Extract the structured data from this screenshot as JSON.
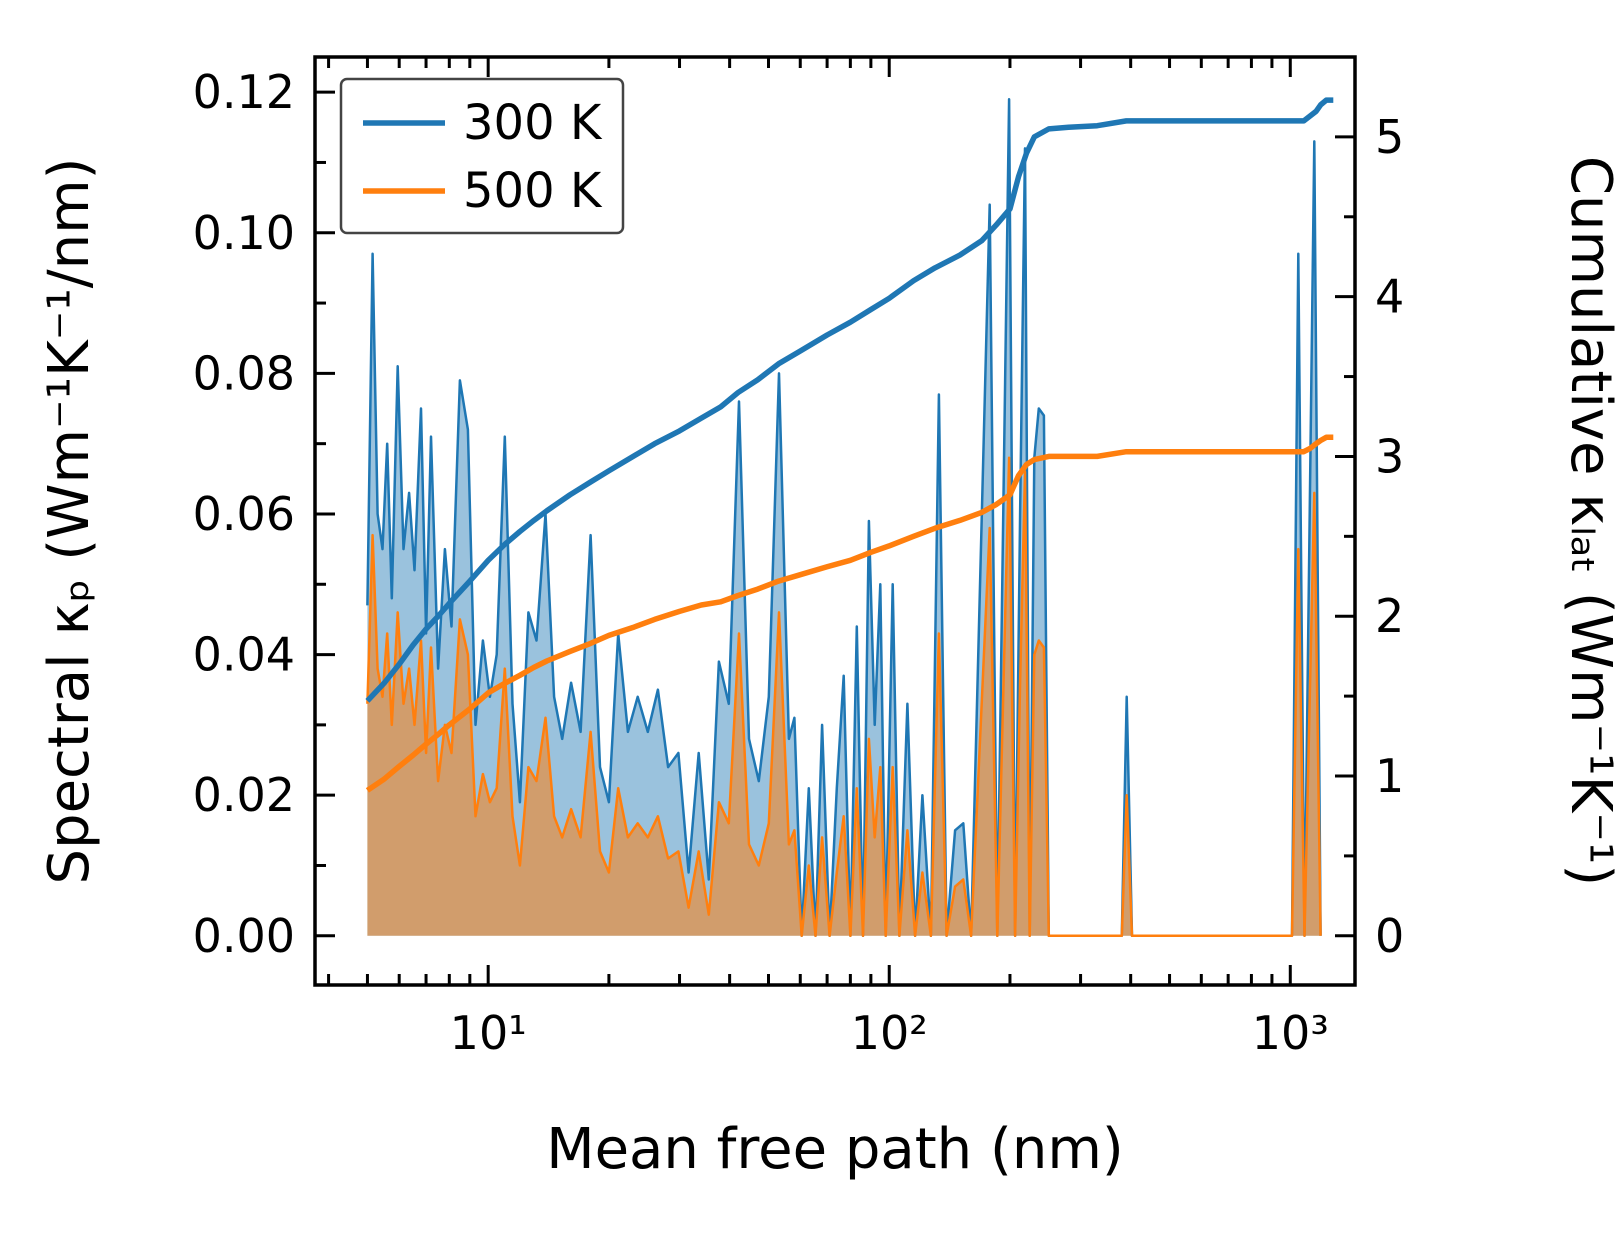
{
  "figure": {
    "background": "#ffffff",
    "frame_color": "#000000"
  },
  "legend": {
    "position": "upper-left",
    "items": [
      {
        "label": "300 K",
        "color": "#1f77b4"
      },
      {
        "label": "500 K",
        "color": "#ff7f0e"
      }
    ]
  },
  "axes": {
    "x_label": "Mean free path (nm)",
    "y_left_label": "Spectral κₚ (Wm⁻¹K⁻¹/nm)",
    "y_right_label": "Cumulative κₗₐₜ (Wm⁻¹K⁻¹)",
    "x_scale": "log",
    "xlim": [
      3.7,
      1450
    ],
    "ylim_left": [
      -0.007,
      0.125
    ],
    "ylim_right": [
      -0.308,
      5.5
    ],
    "x_tick_values": [
      10,
      100,
      1000
    ],
    "x_tick_labels": [
      "10¹",
      "10²",
      "10³"
    ],
    "y_left_tick_values": [
      0,
      0.02,
      0.04,
      0.06,
      0.08,
      0.1,
      0.12
    ],
    "y_left_tick_labels": [
      "0.00",
      "0.02",
      "0.04",
      "0.06",
      "0.08",
      "0.10",
      "0.12"
    ],
    "y_left_minor_values": [
      0.01,
      0.03,
      0.05,
      0.07,
      0.09,
      0.11
    ],
    "y_right_tick_values": [
      0,
      1,
      2,
      3,
      4,
      5
    ],
    "y_right_tick_labels": [
      "0",
      "1",
      "2",
      "3",
      "4",
      "5"
    ],
    "y_right_minor_values": [
      0.5,
      1.5,
      2.5,
      3.5,
      4.5
    ]
  },
  "chart_data": {
    "type": "area",
    "title": "",
    "x_scale": "log",
    "xlabel": "Mean free path (nm)",
    "ylabel_left": "Spectral κₚ (Wm⁻¹K⁻¹/nm)",
    "ylabel_right": "Cumulative κₗₐₜ (Wm⁻¹K⁻¹)",
    "xlim": [
      3.7,
      1450
    ],
    "ylim_left": [
      -0.007,
      0.125
    ],
    "ylim_right": [
      -0.308,
      5.5
    ],
    "legend_position": "upper left",
    "grid": false,
    "colors": {
      "k300": "#1f77b4",
      "k500": "#ff7f0e"
    },
    "spectral": {
      "description": "Spectral thermal conductivity per mean free path (left axis, filled spiky curves)",
      "x": [
        5.0,
        5.15,
        5.3,
        5.45,
        5.6,
        5.75,
        5.95,
        6.15,
        6.35,
        6.55,
        6.8,
        7.0,
        7.2,
        7.5,
        7.8,
        8.1,
        8.5,
        8.9,
        9.3,
        9.7,
        10.1,
        10.5,
        11.0,
        11.5,
        12.0,
        12.6,
        13.2,
        13.9,
        14.6,
        15.3,
        16.1,
        17.0,
        18.0,
        19.0,
        20.0,
        21.1,
        22.3,
        23.6,
        25.0,
        26.5,
        28.1,
        29.8,
        31.6,
        33.5,
        35.5,
        37.6,
        39.8,
        42.2,
        44.7,
        47.3,
        50.1,
        53.1,
        56.2,
        58.0,
        60.5,
        63.0,
        65.5,
        68.0,
        71.0,
        74.0,
        77.0,
        80.0,
        83.0,
        86.0,
        89.0,
        92.0,
        95.0,
        98.0,
        102,
        106,
        111,
        116,
        121,
        127,
        133,
        139,
        146,
        153,
        160,
        178,
        186,
        199,
        206,
        212,
        218,
        224,
        230,
        236,
        243,
        250,
        380,
        391,
        403,
        1010,
        1047,
        1085,
        1148,
        1190
      ],
      "k300": [
        0.047,
        0.097,
        0.06,
        0.055,
        0.07,
        0.048,
        0.081,
        0.055,
        0.063,
        0.052,
        0.075,
        0.043,
        0.071,
        0.038,
        0.055,
        0.044,
        0.079,
        0.072,
        0.03,
        0.042,
        0.034,
        0.04,
        0.071,
        0.033,
        0.019,
        0.046,
        0.042,
        0.06,
        0.034,
        0.028,
        0.036,
        0.029,
        0.057,
        0.024,
        0.019,
        0.043,
        0.029,
        0.034,
        0.029,
        0.035,
        0.024,
        0.026,
        0.009,
        0.026,
        0.008,
        0.039,
        0.033,
        0.076,
        0.028,
        0.022,
        0.034,
        0.08,
        0.028,
        0.031,
        0.0,
        0.021,
        0.0,
        0.03,
        0.0,
        0.021,
        0.037,
        0.0,
        0.044,
        0.0,
        0.059,
        0.03,
        0.05,
        0.0,
        0.05,
        0.0,
        0.033,
        0.0,
        0.02,
        0.0,
        0.077,
        0.0,
        0.015,
        0.016,
        0.0,
        0.104,
        0.0,
        0.119,
        0.0,
        0.06,
        0.112,
        0.0,
        0.068,
        0.075,
        0.074,
        0.0,
        0.0,
        0.034,
        0.0,
        0.0,
        0.097,
        0.0,
        0.113,
        0.0
      ],
      "k500": [
        0.033,
        0.057,
        0.038,
        0.034,
        0.043,
        0.03,
        0.046,
        0.033,
        0.038,
        0.03,
        0.042,
        0.026,
        0.041,
        0.022,
        0.03,
        0.026,
        0.045,
        0.04,
        0.017,
        0.023,
        0.019,
        0.021,
        0.038,
        0.017,
        0.01,
        0.024,
        0.022,
        0.031,
        0.017,
        0.014,
        0.018,
        0.014,
        0.029,
        0.012,
        0.009,
        0.021,
        0.014,
        0.016,
        0.014,
        0.017,
        0.011,
        0.012,
        0.004,
        0.012,
        0.003,
        0.019,
        0.016,
        0.043,
        0.013,
        0.01,
        0.016,
        0.046,
        0.013,
        0.015,
        0.0,
        0.01,
        0.0,
        0.014,
        0.0,
        0.009,
        0.017,
        0.0,
        0.021,
        0.0,
        0.028,
        0.014,
        0.024,
        0.0,
        0.024,
        0.0,
        0.015,
        0.0,
        0.009,
        0.0,
        0.043,
        0.0,
        0.007,
        0.008,
        0.0,
        0.058,
        0.0,
        0.068,
        0.0,
        0.036,
        0.066,
        0.0,
        0.04,
        0.042,
        0.041,
        0.0,
        0.0,
        0.02,
        0.0,
        0.0,
        0.055,
        0.0,
        0.063,
        0.0
      ]
    },
    "cumulative": {
      "description": "Cumulative lattice thermal conductivity (right axis, thick monotonic curves)",
      "x": [
        5,
        5.5,
        6,
        6.5,
        7,
        7.5,
        8,
        9,
        10,
        11,
        12,
        13,
        14,
        16,
        18,
        20,
        23,
        26,
        30,
        34,
        38,
        42,
        47,
        53,
        60,
        70,
        80,
        90,
        100,
        115,
        130,
        150,
        170,
        185,
        200,
        210,
        220,
        230,
        250,
        280,
        330,
        390,
        500,
        700,
        1000,
        1080,
        1120,
        1160,
        1190,
        1230,
        1280
      ],
      "k300": [
        1.47,
        1.58,
        1.7,
        1.82,
        1.92,
        2.0,
        2.08,
        2.22,
        2.35,
        2.45,
        2.53,
        2.6,
        2.66,
        2.76,
        2.84,
        2.91,
        3.0,
        3.08,
        3.16,
        3.24,
        3.31,
        3.4,
        3.48,
        3.58,
        3.66,
        3.76,
        3.84,
        3.92,
        3.99,
        4.1,
        4.18,
        4.26,
        4.35,
        4.45,
        4.55,
        4.75,
        4.9,
        5.0,
        5.05,
        5.06,
        5.07,
        5.1,
        5.1,
        5.1,
        5.1,
        5.1,
        5.13,
        5.16,
        5.2,
        5.23,
        5.23
      ],
      "k500": [
        0.91,
        0.98,
        1.06,
        1.13,
        1.2,
        1.26,
        1.32,
        1.42,
        1.52,
        1.58,
        1.63,
        1.68,
        1.72,
        1.78,
        1.83,
        1.88,
        1.93,
        1.98,
        2.03,
        2.07,
        2.09,
        2.13,
        2.17,
        2.22,
        2.26,
        2.31,
        2.35,
        2.4,
        2.44,
        2.5,
        2.55,
        2.6,
        2.65,
        2.7,
        2.76,
        2.88,
        2.95,
        2.98,
        3.0,
        3.0,
        3.0,
        3.03,
        3.03,
        3.03,
        3.03,
        3.03,
        3.05,
        3.08,
        3.1,
        3.12,
        3.12
      ]
    }
  }
}
